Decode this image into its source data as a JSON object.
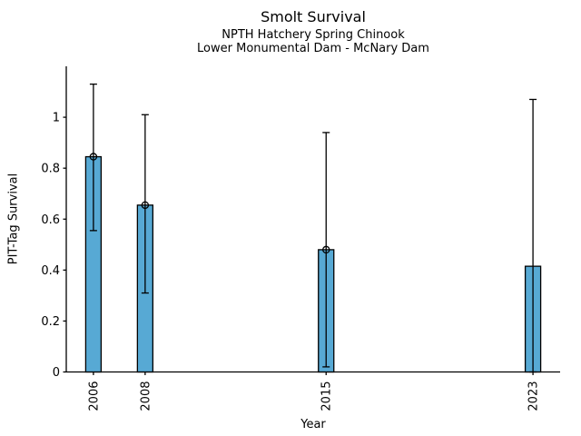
{
  "figure": {
    "background_color": "#ffffff",
    "text_color": "#000000"
  },
  "chart_data": {
    "type": "bar",
    "title": "Smolt Survival",
    "subtitle": [
      "NPTH Hatchery Spring Chinook",
      "Lower Monumental Dam - McNary Dam"
    ],
    "xlabel": "Year",
    "ylabel": "PIT-Tag Survival",
    "categories": [
      "2006",
      "2008",
      "2015",
      "2023"
    ],
    "x": [
      2006,
      2008,
      2015,
      2023
    ],
    "values": [
      0.845,
      0.655,
      0.48,
      0.415
    ],
    "error_low": [
      0.555,
      0.31,
      0.02,
      0.0
    ],
    "error_high": [
      1.13,
      1.01,
      0.94,
      1.07
    ],
    "top_marker": [
      true,
      true,
      true,
      false
    ],
    "xlim": [
      2004.95,
      2024.05
    ],
    "ylim": [
      0,
      1.2
    ],
    "yticks": [
      0,
      0.2,
      0.4,
      0.6,
      0.8,
      1
    ],
    "ytick_labels": [
      "0",
      "0.2",
      "0.4",
      "0.6",
      "0.8",
      "1"
    ],
    "grid": false,
    "legend": null,
    "bar_color": "#57a9d4",
    "bar_edge_color": "#000000",
    "error_color": "#000000",
    "axis_color": "#000000"
  }
}
